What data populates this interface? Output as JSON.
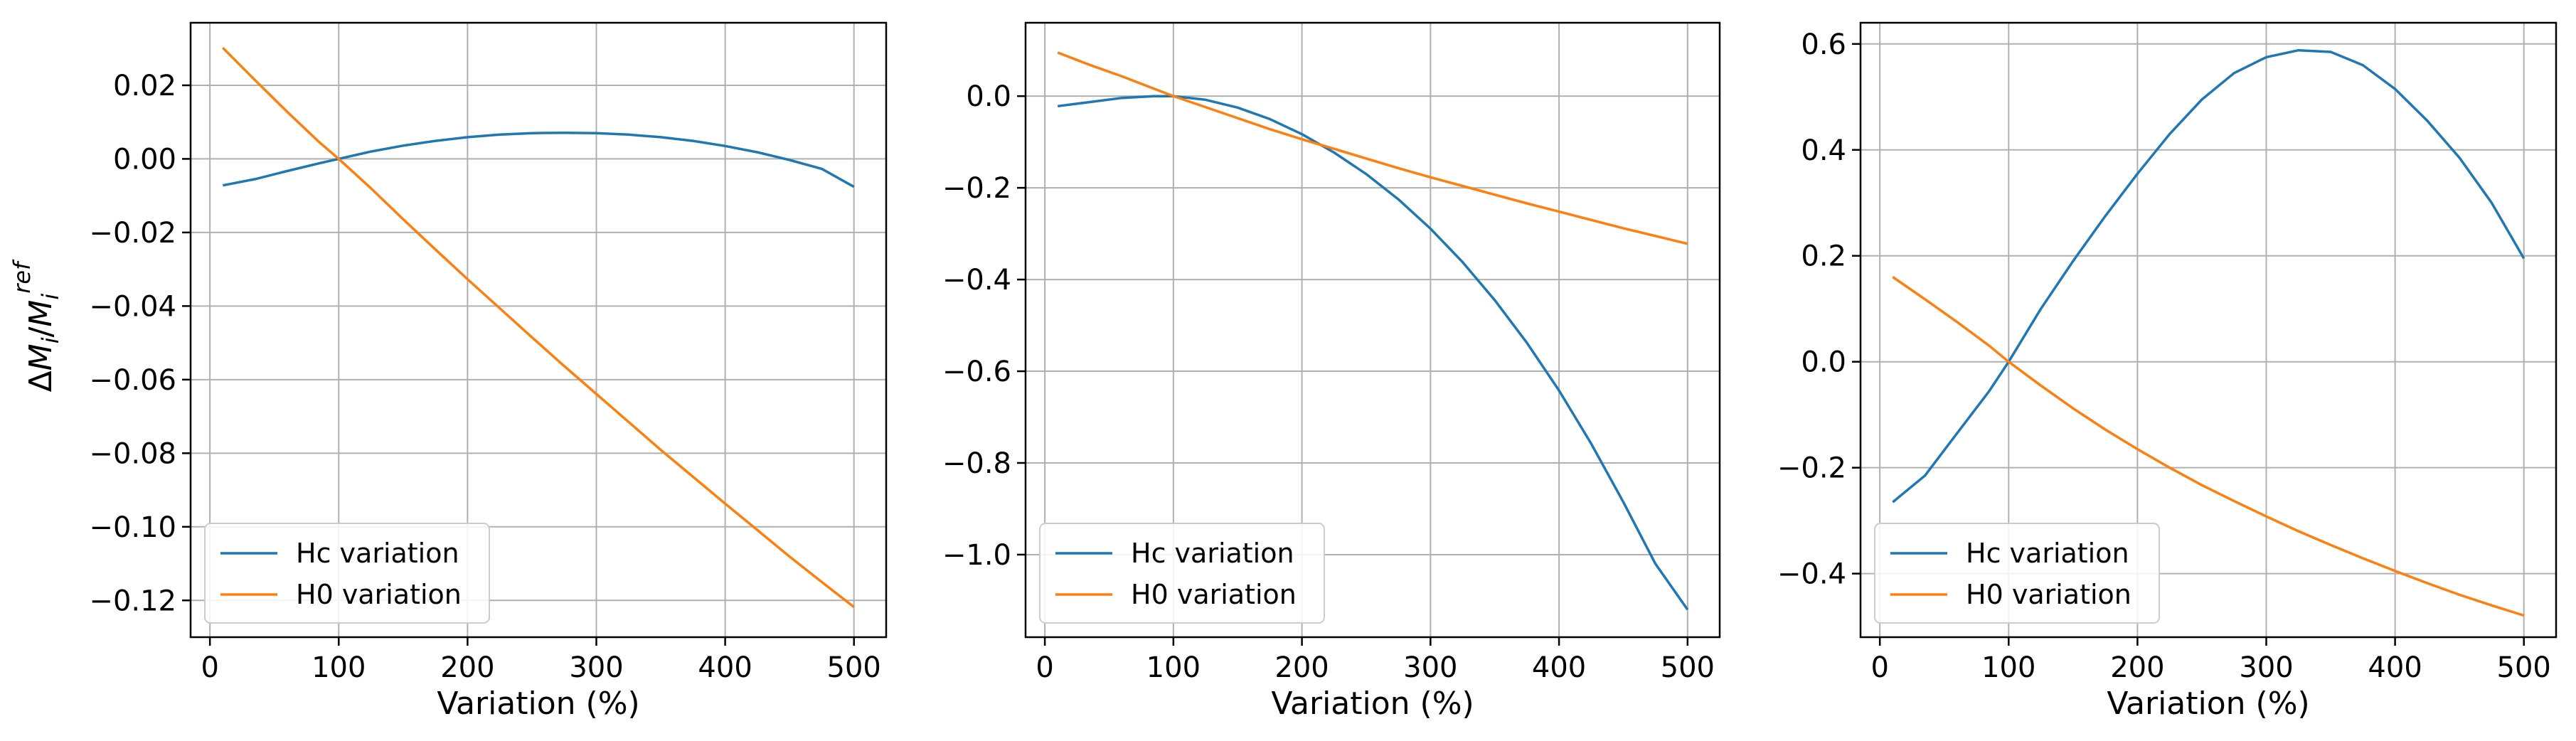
{
  "figure": {
    "ylabel": "ΔM_i/M_i^ref",
    "colors": {
      "hc": "#1f77b4",
      "h0": "#ff7f0e",
      "grid": "#b0b0b0",
      "axis": "#000000"
    }
  },
  "chart_data": [
    {
      "type": "line",
      "title": "",
      "xlabel": "Variation (%)",
      "ylabel": "ΔM_i/M_i^ref",
      "xlim": [
        -15,
        525
      ],
      "ylim": [
        -0.13,
        0.037
      ],
      "xticks": [
        0,
        100,
        200,
        300,
        400,
        500
      ],
      "xtick_labels": [
        "0",
        "100",
        "200",
        "300",
        "400",
        "500"
      ],
      "yticks": [
        0.02,
        0.0,
        -0.02,
        -0.04,
        -0.06,
        -0.08,
        -0.1,
        -0.12
      ],
      "ytick_labels": [
        "0.02",
        "0.00",
        "−0.02",
        "−0.04",
        "−0.06",
        "−0.08",
        "−0.10",
        "−0.12"
      ],
      "grid": true,
      "legend": "lower-left",
      "series": [
        {
          "name": "Hc variation",
          "x": [
            10,
            35,
            60,
            85,
            100,
            125,
            150,
            175,
            200,
            225,
            250,
            275,
            300,
            325,
            350,
            375,
            400,
            425,
            450,
            475,
            500
          ],
          "y": [
            -0.0072,
            -0.0055,
            -0.0033,
            -0.0012,
            0.0,
            0.002,
            0.0036,
            0.0049,
            0.0059,
            0.0066,
            0.007,
            0.0071,
            0.007,
            0.0066,
            0.0059,
            0.0049,
            0.0035,
            0.0018,
            -0.0003,
            -0.0027,
            -0.0076
          ]
        },
        {
          "name": "H0 variation",
          "x": [
            10,
            35,
            60,
            85,
            100,
            125,
            150,
            175,
            200,
            225,
            250,
            275,
            300,
            325,
            350,
            375,
            400,
            425,
            450,
            475,
            500
          ],
          "y": [
            0.0302,
            0.0214,
            0.0128,
            0.0045,
            0.0,
            -0.008,
            -0.0164,
            -0.0246,
            -0.0327,
            -0.0406,
            -0.0485,
            -0.0563,
            -0.0639,
            -0.0715,
            -0.0791,
            -0.0864,
            -0.0937,
            -0.1009,
            -0.1081,
            -0.115,
            -0.1218
          ]
        }
      ]
    },
    {
      "type": "line",
      "title": "",
      "xlabel": "Variation (%)",
      "ylabel": "",
      "xlim": [
        -15,
        525
      ],
      "ylim": [
        -1.18,
        0.16
      ],
      "xticks": [
        0,
        100,
        200,
        300,
        400,
        500
      ],
      "xtick_labels": [
        "0",
        "100",
        "200",
        "300",
        "400",
        "500"
      ],
      "yticks": [
        0.0,
        -0.2,
        -0.4,
        -0.6,
        -0.8,
        -1.0
      ],
      "ytick_labels": [
        "0.0",
        "−0.2",
        "−0.4",
        "−0.6",
        "−0.8",
        "−1.0"
      ],
      "grid": true,
      "legend": "lower-left",
      "series": [
        {
          "name": "Hc variation",
          "x": [
            10,
            35,
            60,
            85,
            100,
            125,
            150,
            175,
            200,
            225,
            250,
            275,
            300,
            325,
            350,
            375,
            400,
            425,
            450,
            475,
            500
          ],
          "y": [
            -0.022,
            -0.013,
            -0.004,
            0.0,
            0.0,
            -0.008,
            -0.025,
            -0.05,
            -0.083,
            -0.123,
            -0.17,
            -0.225,
            -0.289,
            -0.362,
            -0.445,
            -0.538,
            -0.642,
            -0.758,
            -0.885,
            -1.02,
            -1.12
          ]
        },
        {
          "name": "H0 variation",
          "x": [
            10,
            35,
            60,
            85,
            100,
            125,
            150,
            175,
            200,
            225,
            250,
            275,
            300,
            325,
            350,
            375,
            400,
            425,
            450,
            475,
            500
          ],
          "y": [
            0.095,
            0.068,
            0.043,
            0.016,
            0.0,
            -0.024,
            -0.048,
            -0.072,
            -0.094,
            -0.115,
            -0.136,
            -0.157,
            -0.177,
            -0.196,
            -0.215,
            -0.234,
            -0.252,
            -0.27,
            -0.288,
            -0.305,
            -0.322
          ]
        }
      ]
    },
    {
      "type": "line",
      "title": "",
      "xlabel": "Variation (%)",
      "ylabel": "",
      "xlim": [
        -15,
        525
      ],
      "ylim": [
        -0.52,
        0.64
      ],
      "xticks": [
        0,
        100,
        200,
        300,
        400,
        500
      ],
      "xtick_labels": [
        "0",
        "100",
        "200",
        "300",
        "400",
        "500"
      ],
      "yticks": [
        0.6,
        0.4,
        0.2,
        0.0,
        -0.2,
        -0.4
      ],
      "ytick_labels": [
        "0.6",
        "0.4",
        "0.2",
        "0.0",
        "−0.2",
        "−0.4"
      ],
      "grid": true,
      "legend": "lower-left",
      "series": [
        {
          "name": "Hc variation",
          "x": [
            10,
            35,
            60,
            85,
            100,
            125,
            150,
            175,
            200,
            225,
            250,
            275,
            300,
            325,
            350,
            375,
            400,
            425,
            450,
            475,
            500
          ],
          "y": [
            -0.265,
            -0.215,
            -0.135,
            -0.055,
            0.0,
            0.1,
            0.19,
            0.275,
            0.355,
            0.43,
            0.495,
            0.545,
            0.575,
            0.588,
            0.585,
            0.56,
            0.515,
            0.455,
            0.385,
            0.3,
            0.195
          ]
        },
        {
          "name": "H0 variation",
          "x": [
            10,
            35,
            60,
            85,
            100,
            125,
            150,
            175,
            200,
            225,
            250,
            275,
            300,
            325,
            350,
            375,
            400,
            425,
            450,
            475,
            500
          ],
          "y": [
            0.16,
            0.118,
            0.075,
            0.03,
            0.0,
            -0.045,
            -0.088,
            -0.128,
            -0.165,
            -0.2,
            -0.233,
            -0.263,
            -0.292,
            -0.32,
            -0.346,
            -0.371,
            -0.395,
            -0.418,
            -0.44,
            -0.46,
            -0.479
          ]
        }
      ]
    }
  ]
}
